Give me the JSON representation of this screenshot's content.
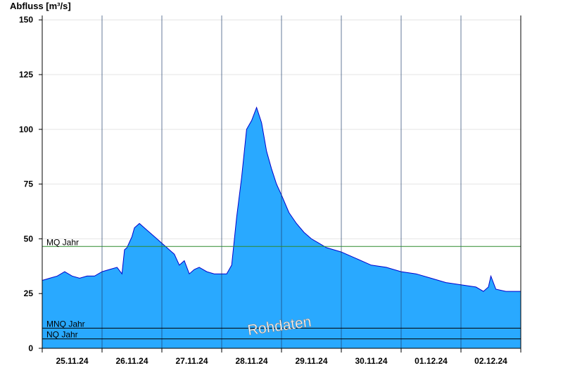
{
  "chart_data": {
    "type": "area",
    "title": "",
    "ylabel": "Abfluss [m³/s]",
    "xlabel": "",
    "ylim": [
      0,
      152
    ],
    "yticks": [
      0,
      25,
      50,
      75,
      100,
      125,
      150
    ],
    "x_range": [
      "25.11.24 00:00",
      "03.12.24 00:00"
    ],
    "x_tick_labels": [
      "25.11.24",
      "26.11.24",
      "27.11.24",
      "28.11.24",
      "29.11.24",
      "30.11.24",
      "01.12.24",
      "02.12.24"
    ],
    "grid": true,
    "legend": "none",
    "series": [
      {
        "values": [
          {
            "x": "25.11.24 00:00",
            "y": 31
          },
          {
            "x": "25.11.24 03:00",
            "y": 32
          },
          {
            "x": "25.11.24 06:00",
            "y": 33
          },
          {
            "x": "25.11.24 09:00",
            "y": 35
          },
          {
            "x": "25.11.24 12:00",
            "y": 33
          },
          {
            "x": "25.11.24 15:00",
            "y": 32
          },
          {
            "x": "25.11.24 18:00",
            "y": 33
          },
          {
            "x": "25.11.24 21:00",
            "y": 33
          },
          {
            "x": "26.11.24 00:00",
            "y": 35
          },
          {
            "x": "26.11.24 03:00",
            "y": 36
          },
          {
            "x": "26.11.24 06:00",
            "y": 37
          },
          {
            "x": "26.11.24 08:00",
            "y": 34
          },
          {
            "x": "26.11.24 09:00",
            "y": 45
          },
          {
            "x": "26.11.24 10:00",
            "y": 46
          },
          {
            "x": "26.11.24 12:00",
            "y": 51
          },
          {
            "x": "26.11.24 13:00",
            "y": 55
          },
          {
            "x": "26.11.24 15:00",
            "y": 57
          },
          {
            "x": "26.11.24 18:00",
            "y": 54
          },
          {
            "x": "26.11.24 21:00",
            "y": 51
          },
          {
            "x": "27.11.24 00:00",
            "y": 48
          },
          {
            "x": "27.11.24 03:00",
            "y": 45
          },
          {
            "x": "27.11.24 05:00",
            "y": 43
          },
          {
            "x": "27.11.24 07:00",
            "y": 38
          },
          {
            "x": "27.11.24 09:00",
            "y": 40
          },
          {
            "x": "27.11.24 11:00",
            "y": 34
          },
          {
            "x": "27.11.24 13:00",
            "y": 36
          },
          {
            "x": "27.11.24 15:00",
            "y": 37
          },
          {
            "x": "27.11.24 18:00",
            "y": 35
          },
          {
            "x": "27.11.24 21:00",
            "y": 34
          },
          {
            "x": "28.11.24 00:00",
            "y": 34
          },
          {
            "x": "28.11.24 02:00",
            "y": 34
          },
          {
            "x": "28.11.24 04:00",
            "y": 38
          },
          {
            "x": "28.11.24 06:00",
            "y": 60
          },
          {
            "x": "28.11.24 08:00",
            "y": 78
          },
          {
            "x": "28.11.24 10:00",
            "y": 100
          },
          {
            "x": "28.11.24 12:00",
            "y": 104
          },
          {
            "x": "28.11.24 14:00",
            "y": 110
          },
          {
            "x": "28.11.24 16:00",
            "y": 103
          },
          {
            "x": "28.11.24 18:00",
            "y": 90
          },
          {
            "x": "28.11.24 20:00",
            "y": 82
          },
          {
            "x": "28.11.24 22:00",
            "y": 75
          },
          {
            "x": "29.11.24 00:00",
            "y": 70
          },
          {
            "x": "29.11.24 03:00",
            "y": 62
          },
          {
            "x": "29.11.24 06:00",
            "y": 57
          },
          {
            "x": "29.11.24 09:00",
            "y": 53
          },
          {
            "x": "29.11.24 12:00",
            "y": 50
          },
          {
            "x": "29.11.24 15:00",
            "y": 48
          },
          {
            "x": "29.11.24 18:00",
            "y": 46
          },
          {
            "x": "29.11.24 21:00",
            "y": 45
          },
          {
            "x": "30.11.24 00:00",
            "y": 44
          },
          {
            "x": "30.11.24 06:00",
            "y": 41
          },
          {
            "x": "30.11.24 12:00",
            "y": 38
          },
          {
            "x": "30.11.24 18:00",
            "y": 37
          },
          {
            "x": "01.12.24 00:00",
            "y": 35
          },
          {
            "x": "01.12.24 06:00",
            "y": 34
          },
          {
            "x": "01.12.24 12:00",
            "y": 32
          },
          {
            "x": "01.12.24 18:00",
            "y": 30
          },
          {
            "x": "02.12.24 00:00",
            "y": 29
          },
          {
            "x": "02.12.24 06:00",
            "y": 28
          },
          {
            "x": "02.12.24 09:00",
            "y": 26
          },
          {
            "x": "02.12.24 11:00",
            "y": 28
          },
          {
            "x": "02.12.24 12:00",
            "y": 33
          },
          {
            "x": "02.12.24 14:00",
            "y": 27
          },
          {
            "x": "02.12.24 18:00",
            "y": 26
          },
          {
            "x": "02.12.24 22:00",
            "y": 26
          },
          {
            "x": "03.12.24 00:00",
            "y": 26
          }
        ]
      }
    ],
    "reference_lines": [
      {
        "label": "MQ Jahr",
        "value": 46.5,
        "color": "#2e8b2e"
      },
      {
        "label": "MNQ Jahr",
        "value": 9.2,
        "color": "#000000"
      },
      {
        "label": "NQ Jahr",
        "value": 4.3,
        "color": "#000000"
      }
    ],
    "annotations": [
      "Rohdaten"
    ],
    "colors": {
      "fill": "#29a9ff",
      "line": "#0000cc",
      "grid": "#e4e4e4",
      "day_line": "#1a3a6a"
    }
  }
}
